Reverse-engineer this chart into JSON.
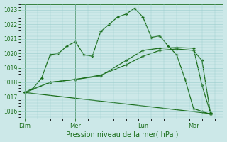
{
  "xlabel": "Pression niveau de la mer( hPa )",
  "ylim": [
    1015.5,
    1023.4
  ],
  "yticks": [
    1016,
    1017,
    1018,
    1019,
    1020,
    1021,
    1022,
    1023
  ],
  "bg_color": "#cce8e8",
  "line_color": "#1a6e1a",
  "grid_color": "#99cccc",
  "xtick_labels": [
    "Dim",
    "Mer",
    "Lun",
    "Mar"
  ],
  "xtick_positions": [
    0.0,
    6.0,
    14.0,
    20.0
  ],
  "vline_positions": [
    0.0,
    6.0,
    14.0,
    20.0
  ],
  "line1_x": [
    0,
    1,
    2,
    3,
    4,
    5,
    6,
    7,
    8,
    9,
    10,
    11,
    12,
    13,
    14,
    15,
    16,
    17,
    18,
    19,
    20,
    21,
    22
  ],
  "line1_y": [
    1017.3,
    1017.6,
    1018.3,
    1019.9,
    1020.0,
    1020.5,
    1020.8,
    1019.9,
    1019.8,
    1021.5,
    1022.0,
    1022.5,
    1022.7,
    1023.1,
    1022.5,
    1021.1,
    1021.2,
    1020.5,
    1019.9,
    1018.2,
    1016.2,
    1016.0,
    1015.8
  ],
  "line1_markers": [
    0,
    1,
    2,
    3,
    4,
    5,
    6,
    7,
    8,
    9,
    10,
    11,
    12,
    13,
    14,
    15,
    16,
    17,
    18,
    19,
    20,
    21,
    22
  ],
  "line2_x": [
    0,
    3,
    6,
    9,
    12,
    14,
    16,
    18,
    20,
    21,
    22
  ],
  "line2_y": [
    1017.3,
    1018.0,
    1018.2,
    1018.5,
    1019.2,
    1019.8,
    1020.2,
    1020.3,
    1020.2,
    1019.5,
    1015.9
  ],
  "line3_x": [
    0,
    3,
    6,
    9,
    12,
    14,
    16,
    18,
    20,
    21,
    22
  ],
  "line3_y": [
    1017.3,
    1018.0,
    1018.2,
    1018.45,
    1019.5,
    1020.2,
    1020.35,
    1020.4,
    1020.35,
    1017.8,
    1015.9
  ],
  "line4_x": [
    0,
    22
  ],
  "line4_y": [
    1017.3,
    1015.85
  ],
  "xlim": [
    -0.5,
    23.5
  ]
}
